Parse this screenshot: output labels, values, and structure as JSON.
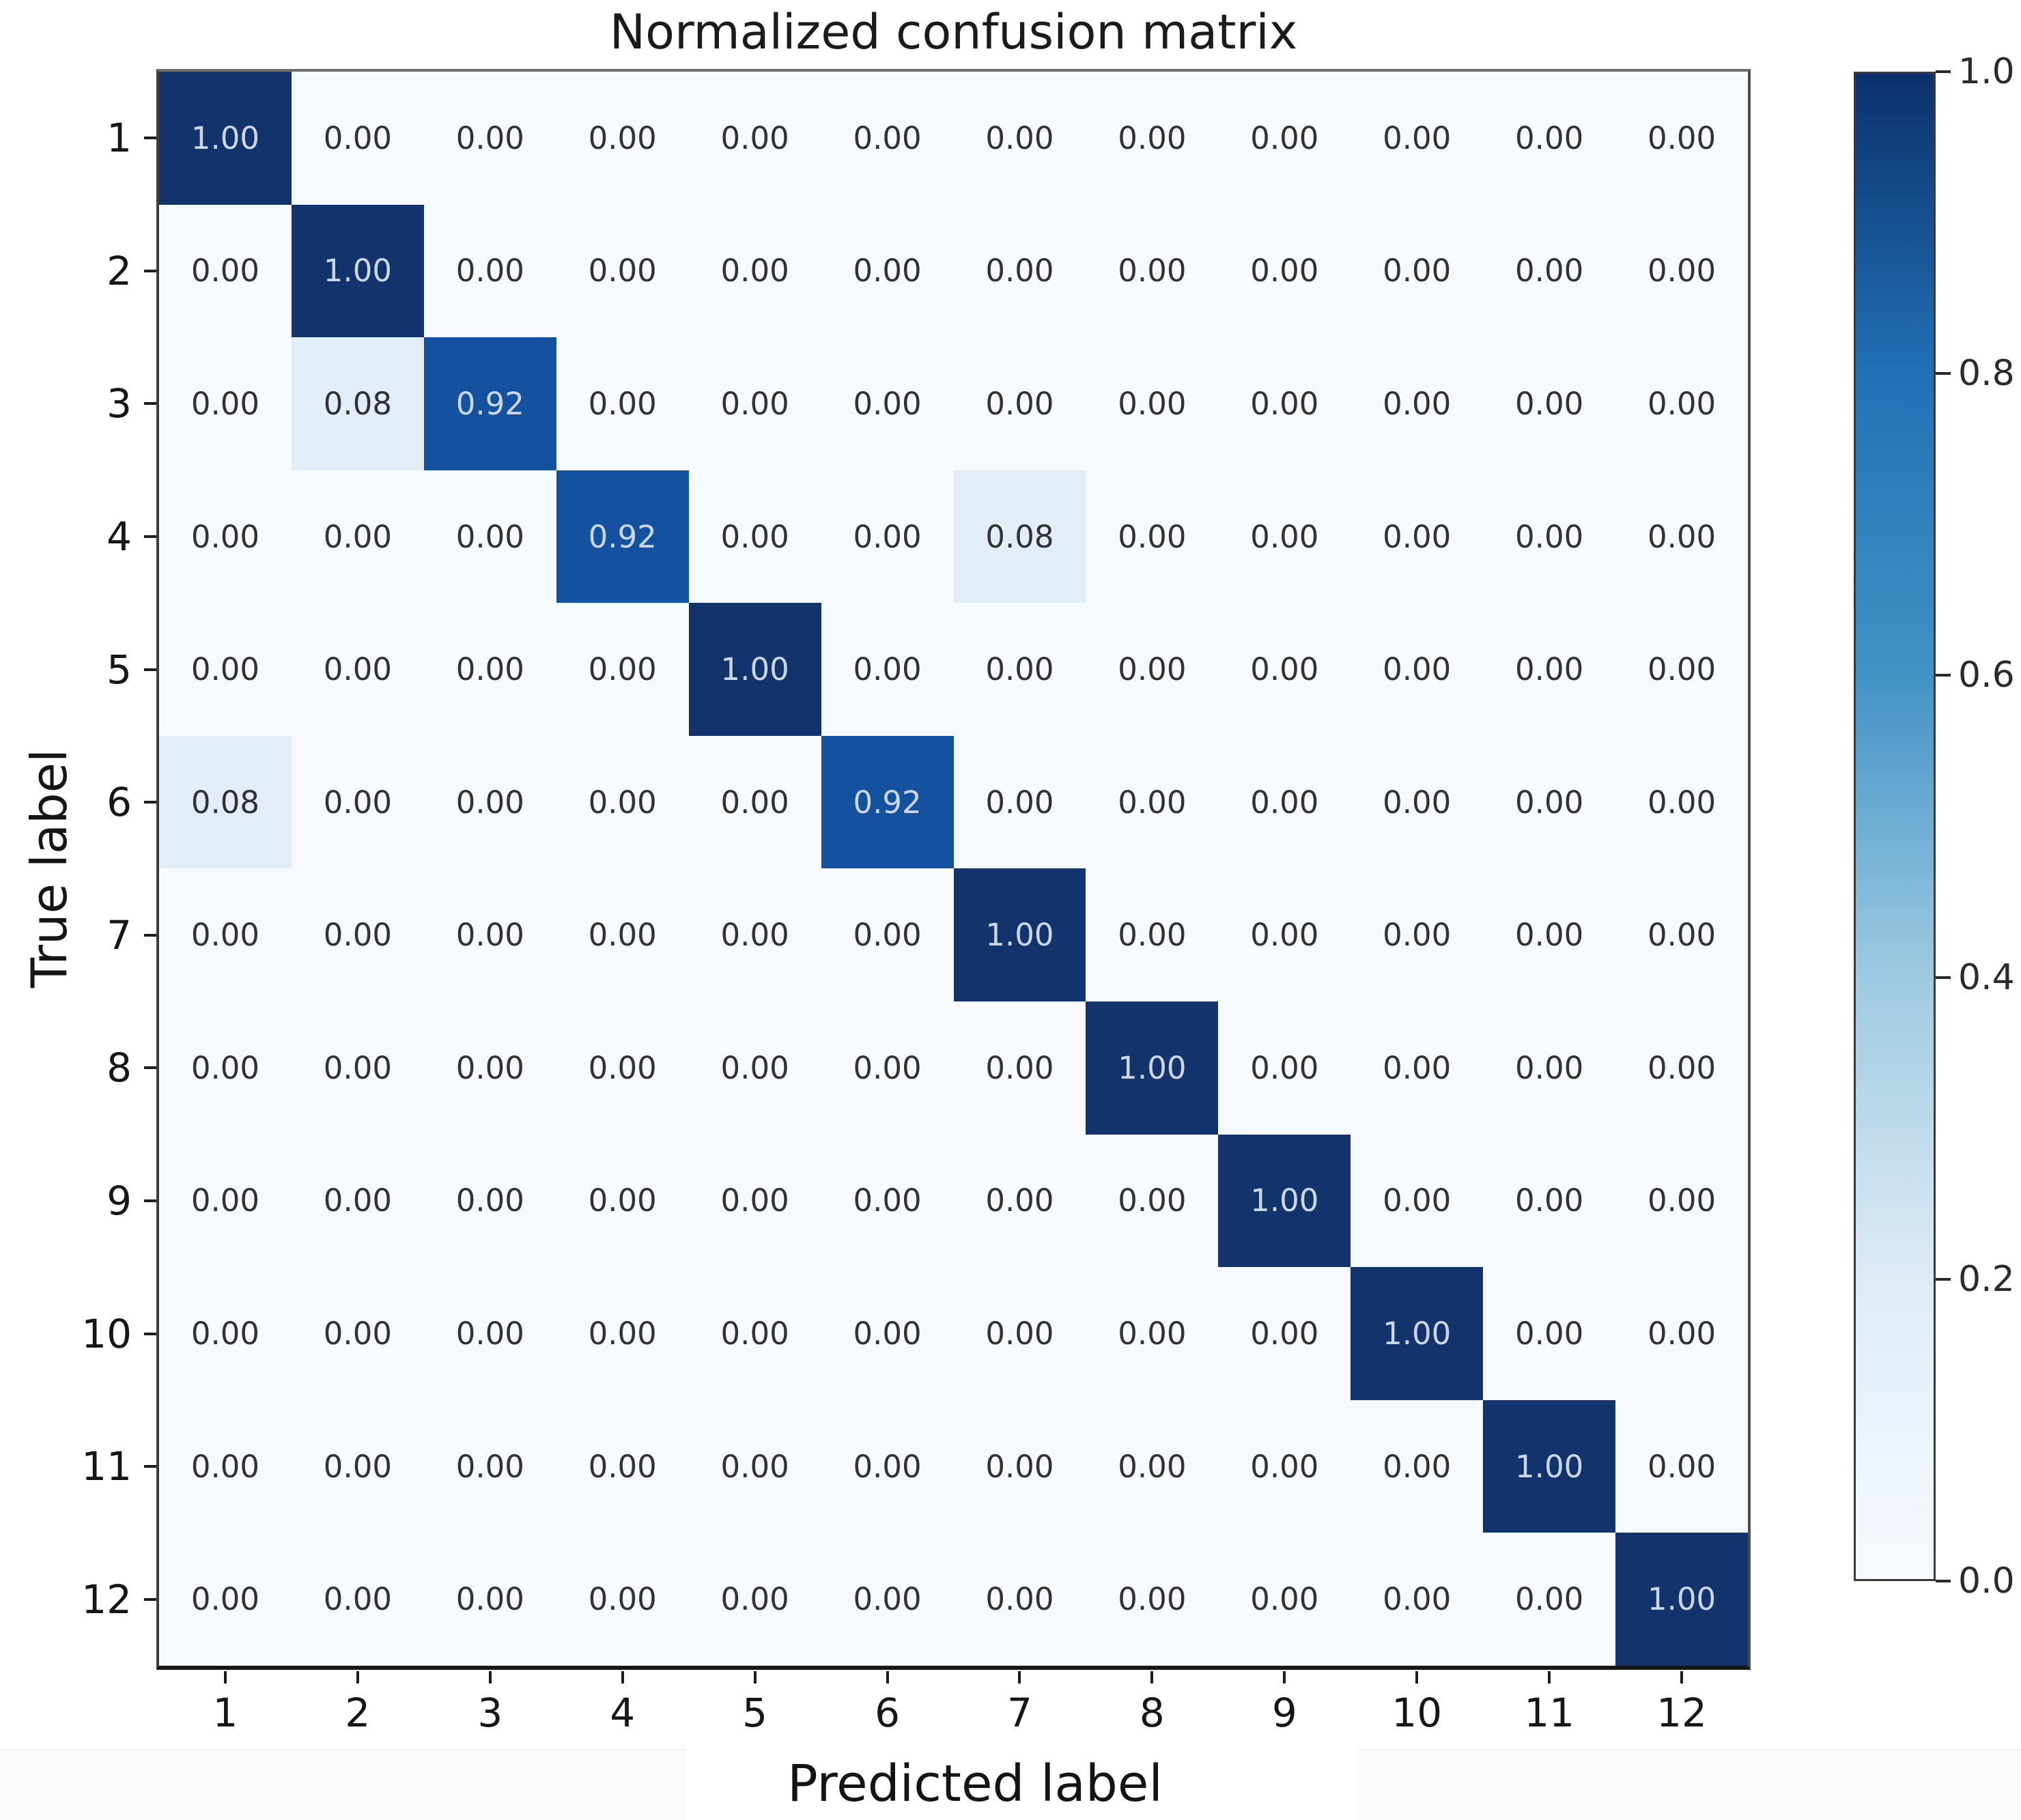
{
  "title": "Normalized confusion matrix",
  "axes": {
    "xlabel": "Predicted label",
    "ylabel": "True label",
    "xtick_labels": [
      "1",
      "2",
      "3",
      "4",
      "5",
      "6",
      "7",
      "8",
      "9",
      "10",
      "11",
      "12"
    ],
    "ytick_labels": [
      "1",
      "2",
      "3",
      "4",
      "5",
      "6",
      "7",
      "8",
      "9",
      "10",
      "11",
      "12"
    ]
  },
  "colorbar": {
    "tick_labels": [
      "1.0",
      "0.8",
      "0.6",
      "0.4",
      "0.2",
      "0.0"
    ],
    "vmin": 0.0,
    "vmax": 1.0
  },
  "colors": {
    "cell_100": "#12336b",
    "cell_092": "#14519e",
    "cell_008": "#e2edf8",
    "cell_000": "#f6f9fd",
    "text_on_dark": "#ccd7e8",
    "text_on_light": "#323232"
  },
  "chart_data": {
    "type": "heatmap",
    "title": "Normalized confusion matrix",
    "xlabel": "Predicted label",
    "ylabel": "True label",
    "x_categories": [
      "1",
      "2",
      "3",
      "4",
      "5",
      "6",
      "7",
      "8",
      "9",
      "10",
      "11",
      "12"
    ],
    "y_categories": [
      "1",
      "2",
      "3",
      "4",
      "5",
      "6",
      "7",
      "8",
      "9",
      "10",
      "11",
      "12"
    ],
    "matrix": [
      [
        1.0,
        0.0,
        0.0,
        0.0,
        0.0,
        0.0,
        0.0,
        0.0,
        0.0,
        0.0,
        0.0,
        0.0
      ],
      [
        0.0,
        1.0,
        0.0,
        0.0,
        0.0,
        0.0,
        0.0,
        0.0,
        0.0,
        0.0,
        0.0,
        0.0
      ],
      [
        0.0,
        0.08,
        0.92,
        0.0,
        0.0,
        0.0,
        0.0,
        0.0,
        0.0,
        0.0,
        0.0,
        0.0
      ],
      [
        0.0,
        0.0,
        0.0,
        0.92,
        0.0,
        0.0,
        0.08,
        0.0,
        0.0,
        0.0,
        0.0,
        0.0
      ],
      [
        0.0,
        0.0,
        0.0,
        0.0,
        1.0,
        0.0,
        0.0,
        0.0,
        0.0,
        0.0,
        0.0,
        0.0
      ],
      [
        0.08,
        0.0,
        0.0,
        0.0,
        0.0,
        0.92,
        0.0,
        0.0,
        0.0,
        0.0,
        0.0,
        0.0
      ],
      [
        0.0,
        0.0,
        0.0,
        0.0,
        0.0,
        0.0,
        1.0,
        0.0,
        0.0,
        0.0,
        0.0,
        0.0
      ],
      [
        0.0,
        0.0,
        0.0,
        0.0,
        0.0,
        0.0,
        0.0,
        1.0,
        0.0,
        0.0,
        0.0,
        0.0
      ],
      [
        0.0,
        0.0,
        0.0,
        0.0,
        0.0,
        0.0,
        0.0,
        0.0,
        1.0,
        0.0,
        0.0,
        0.0
      ],
      [
        0.0,
        0.0,
        0.0,
        0.0,
        0.0,
        0.0,
        0.0,
        0.0,
        0.0,
        1.0,
        0.0,
        0.0
      ],
      [
        0.0,
        0.0,
        0.0,
        0.0,
        0.0,
        0.0,
        0.0,
        0.0,
        0.0,
        0.0,
        1.0,
        0.0
      ],
      [
        0.0,
        0.0,
        0.0,
        0.0,
        0.0,
        0.0,
        0.0,
        0.0,
        0.0,
        0.0,
        0.0,
        1.0
      ]
    ],
    "value_format": "0.00",
    "colormap": "Blues",
    "colorbar_ticks": [
      1.0,
      0.8,
      0.6,
      0.4,
      0.2,
      0.0
    ],
    "vmin": 0.0,
    "vmax": 1.0,
    "legend_position": "right-colorbar",
    "grid": false
  }
}
